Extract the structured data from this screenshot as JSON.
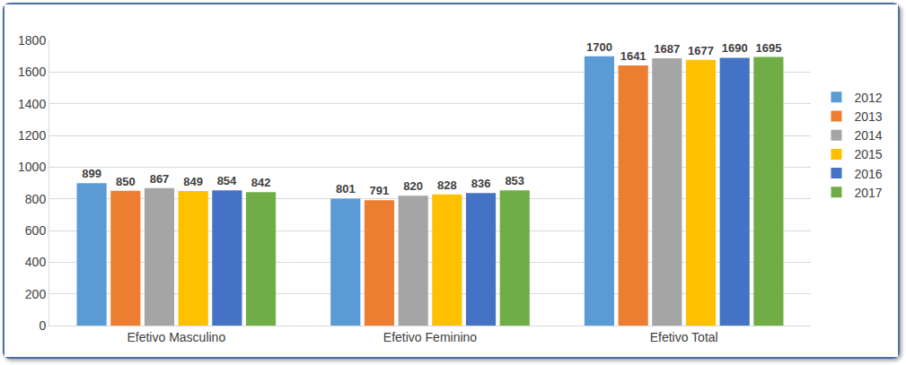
{
  "chart_data": {
    "type": "bar",
    "categories": [
      "Efetivo Masculino",
      "Efetivo Feminino",
      "Efetivo Total"
    ],
    "series": [
      {
        "name": "2012",
        "color": "#5b9bd5",
        "values": [
          899,
          801,
          1700
        ]
      },
      {
        "name": "2013",
        "color": "#ed7d31",
        "values": [
          850,
          791,
          1641
        ]
      },
      {
        "name": "2014",
        "color": "#a5a5a5",
        "values": [
          867,
          820,
          1687
        ]
      },
      {
        "name": "2015",
        "color": "#ffc000",
        "values": [
          849,
          828,
          1677
        ]
      },
      {
        "name": "2016",
        "color": "#4472c4",
        "values": [
          854,
          836,
          1690
        ]
      },
      {
        "name": "2017",
        "color": "#70ad47",
        "values": [
          842,
          853,
          1695
        ]
      }
    ],
    "ylim": [
      0,
      1800
    ],
    "yticks": [
      0,
      200,
      400,
      600,
      800,
      1000,
      1200,
      1400,
      1600,
      1800
    ],
    "grid": true,
    "legend": "right",
    "data_labels": true
  }
}
